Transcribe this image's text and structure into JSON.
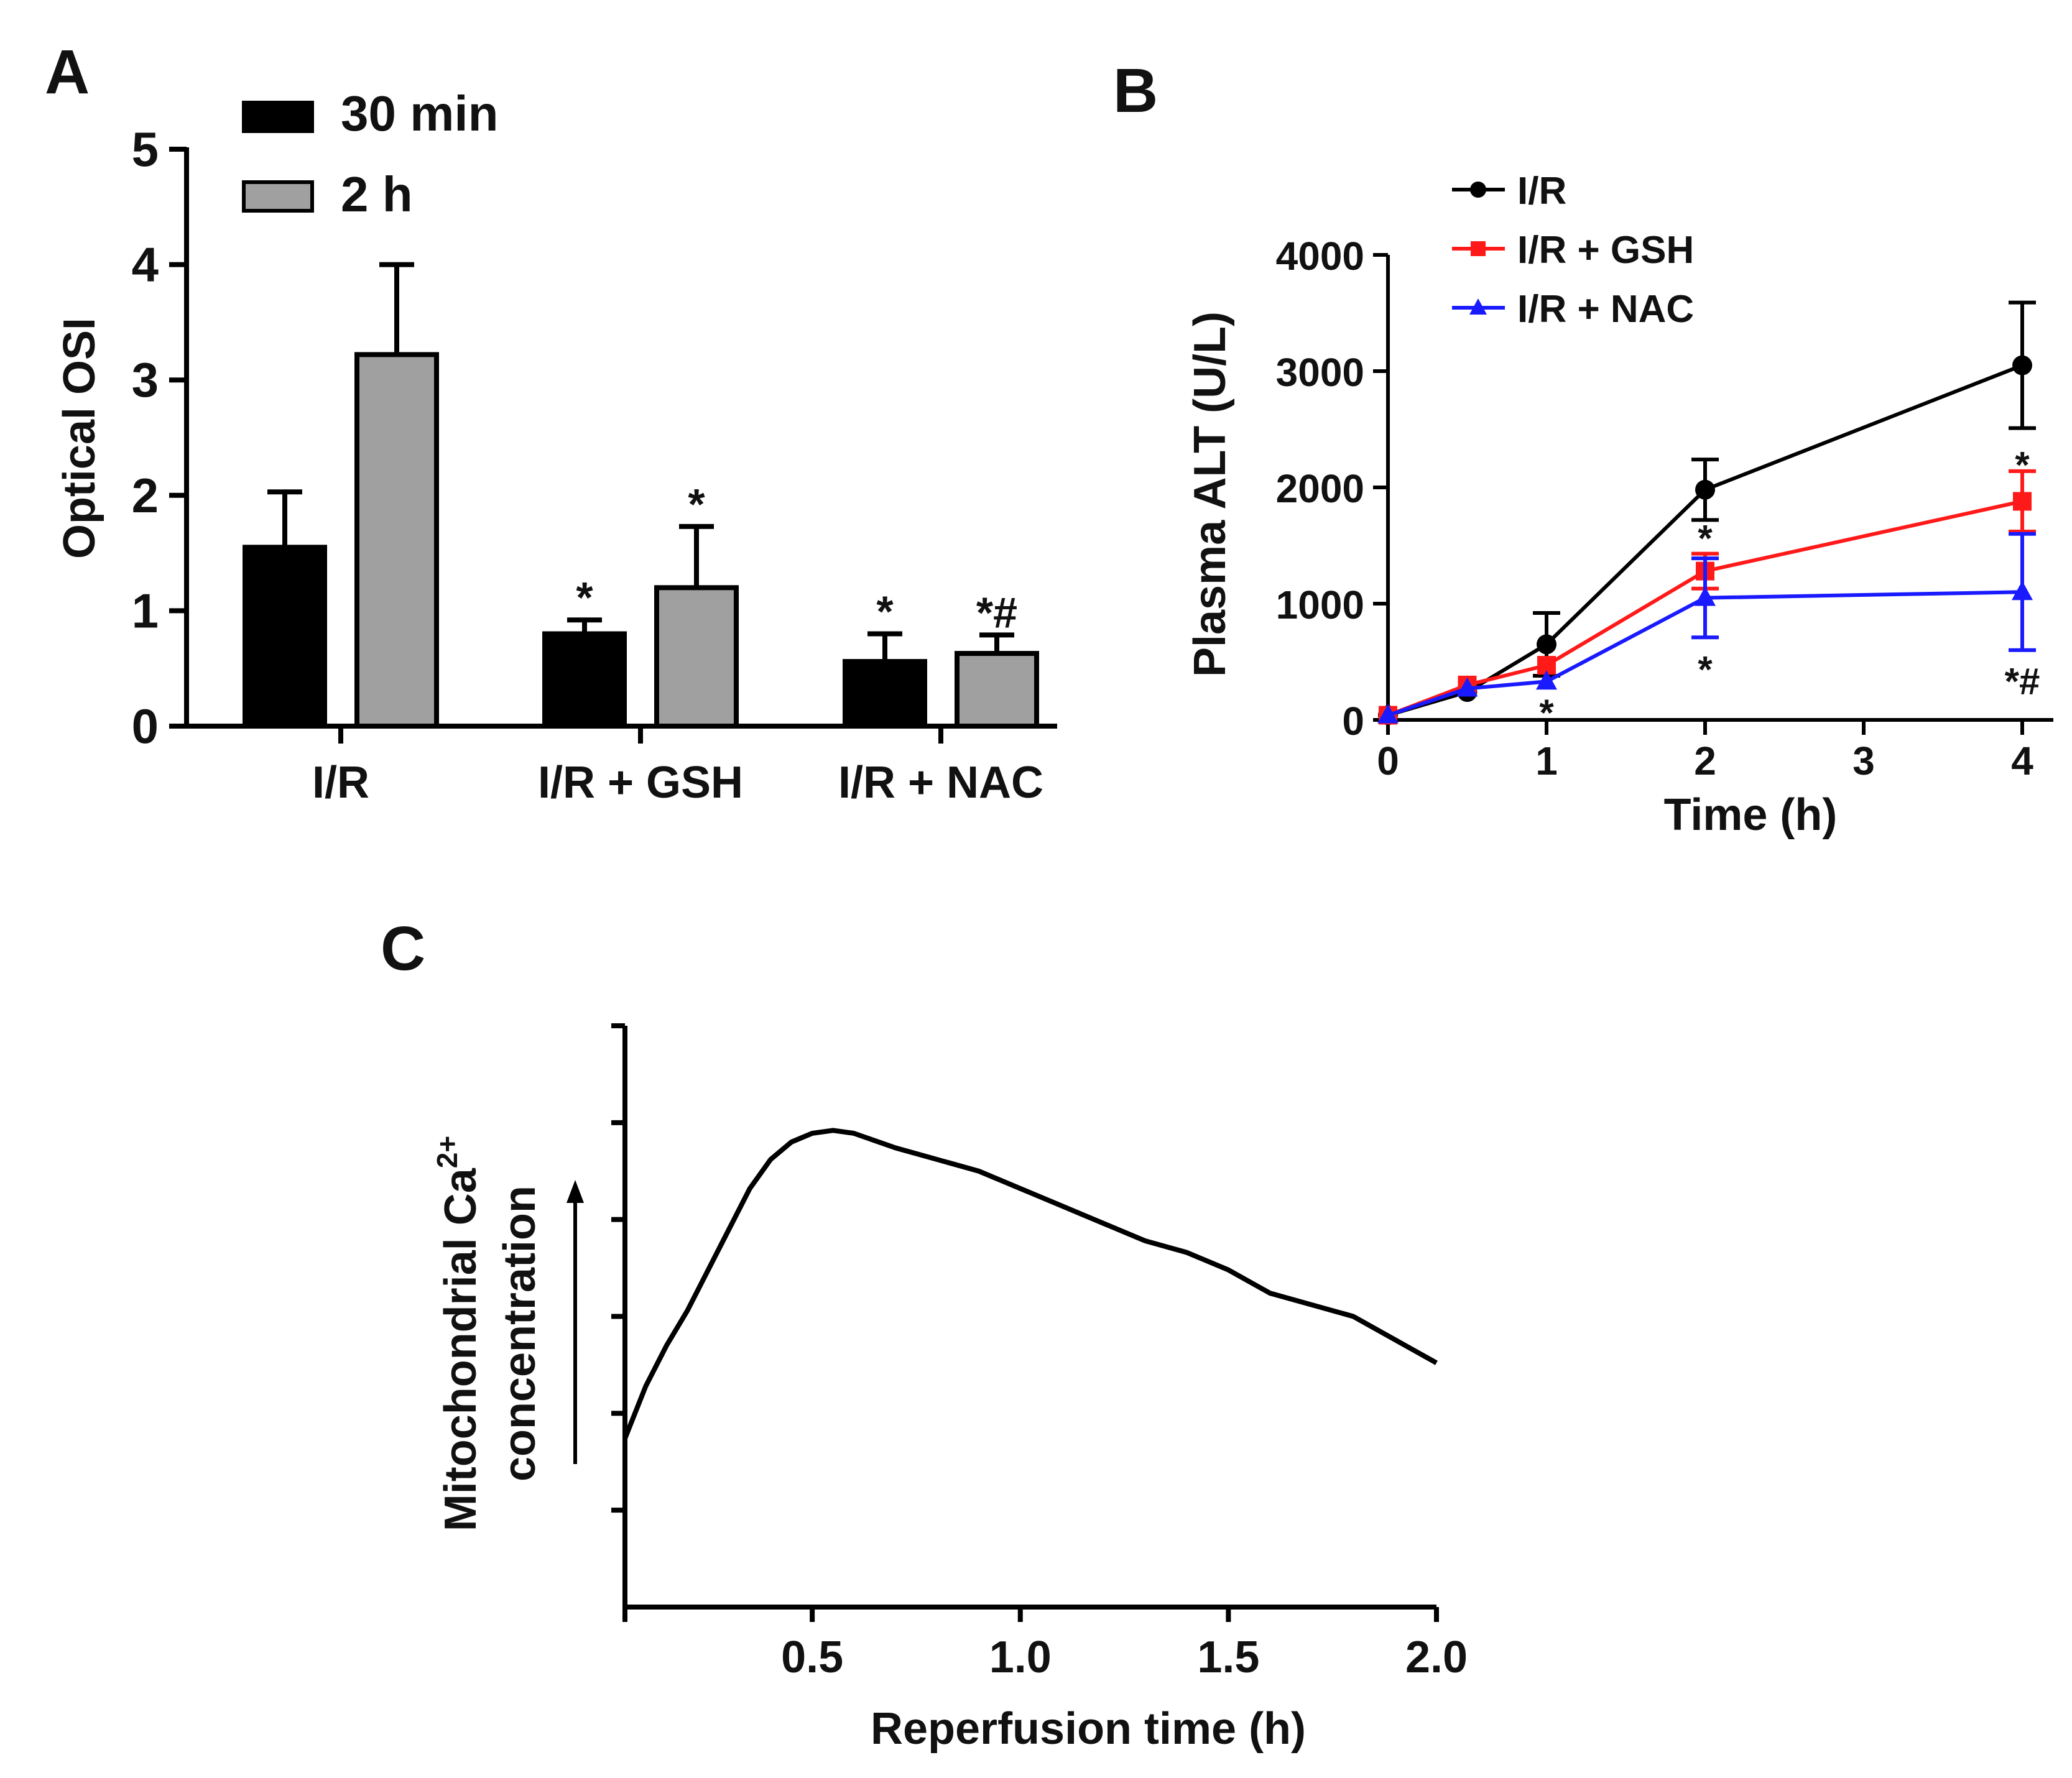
{
  "panel_labels": {
    "a": "A",
    "b": "B",
    "c": "C"
  },
  "chart_data": [
    {
      "type": "bar",
      "panel": "A",
      "ylabel": "Optical OSI",
      "ylim": [
        0,
        5
      ],
      "yticks": [
        0,
        1,
        2,
        3,
        4,
        5
      ],
      "categories": [
        "I/R",
        "I/R + GSH",
        "I/R + NAC"
      ],
      "legend_position": "top-left",
      "series": [
        {
          "name": "30 min",
          "color": "#000000",
          "values": [
            1.55,
            0.8,
            0.56
          ],
          "errors": [
            0.48,
            0.12,
            0.24
          ]
        },
        {
          "name": "2 h",
          "color": "#a0a0a0",
          "values": [
            3.22,
            1.2,
            0.63
          ],
          "errors": [
            0.78,
            0.53,
            0.16
          ]
        }
      ],
      "annotations": [
        {
          "category": 1,
          "series": 0,
          "text": "*"
        },
        {
          "category": 1,
          "series": 1,
          "text": "*"
        },
        {
          "category": 2,
          "series": 0,
          "text": "*"
        },
        {
          "category": 2,
          "series": 1,
          "text": "*#"
        }
      ]
    },
    {
      "type": "line",
      "panel": "B",
      "xlabel": "Time (h)",
      "ylabel": "Plasma ALT (U/L)",
      "xlim": [
        0,
        4
      ],
      "ylim": [
        0,
        4000
      ],
      "xticks": [
        0,
        1,
        2,
        3,
        4
      ],
      "yticks": [
        0,
        1000,
        2000,
        3000,
        4000
      ],
      "legend_position": "top-left",
      "series": [
        {
          "name": "I/R",
          "color": "#000000",
          "marker": "circle",
          "x": [
            0,
            0.5,
            1,
            2,
            4
          ],
          "y": [
            40,
            240,
            650,
            1980,
            3050
          ],
          "err": [
            0,
            0,
            270,
            260,
            540
          ]
        },
        {
          "name": "I/R + GSH",
          "color": "#ff1a1a",
          "marker": "square",
          "x": [
            0,
            0.5,
            1,
            2,
            4
          ],
          "y": [
            40,
            300,
            470,
            1280,
            1880
          ],
          "err": [
            0,
            0,
            0,
            150,
            260
          ]
        },
        {
          "name": "I/R + NAC",
          "color": "#1a1aff",
          "marker": "triangle",
          "x": [
            0,
            0.5,
            1,
            2,
            4
          ],
          "y": [
            40,
            270,
            330,
            1050,
            1100
          ],
          "err": [
            0,
            0,
            0,
            340,
            500
          ]
        }
      ],
      "annotations": [
        {
          "x": 1,
          "y": 70,
          "text": "*"
        },
        {
          "x": 2,
          "y": 1570,
          "text": "*"
        },
        {
          "x": 2,
          "y": 440,
          "text": "*"
        },
        {
          "x": 4,
          "y": 2200,
          "text": "*"
        },
        {
          "x": 4,
          "y": 340,
          "text": "*#"
        }
      ]
    },
    {
      "type": "line",
      "panel": "C",
      "xlabel": "Reperfusion time (h)",
      "ylabel_line1": "Mitochondrial Ca",
      "ylabel_sup": "2+",
      "ylabel_line2": "concentration",
      "xlim": [
        0.05,
        2.0
      ],
      "ylim": [
        0,
        1
      ],
      "xticks": [
        0.5,
        1.0,
        1.5,
        2.0
      ],
      "xtick_labels": [
        "0.5",
        "1.0",
        "1.5",
        "2.0"
      ],
      "y_minor_ticks": 6,
      "series": [
        {
          "color": "#000000",
          "x": [
            0.05,
            0.1,
            0.15,
            0.2,
            0.25,
            0.3,
            0.35,
            0.4,
            0.45,
            0.5,
            0.55,
            0.6,
            0.7,
            0.8,
            0.9,
            1.0,
            1.1,
            1.2,
            1.3,
            1.4,
            1.5,
            1.6,
            1.7,
            1.8,
            1.9,
            2.0
          ],
          "y": [
            0.29,
            0.38,
            0.45,
            0.51,
            0.58,
            0.65,
            0.72,
            0.77,
            0.8,
            0.815,
            0.82,
            0.815,
            0.79,
            0.77,
            0.75,
            0.72,
            0.69,
            0.66,
            0.63,
            0.61,
            0.58,
            0.54,
            0.52,
            0.5,
            0.46,
            0.42
          ]
        }
      ]
    }
  ]
}
